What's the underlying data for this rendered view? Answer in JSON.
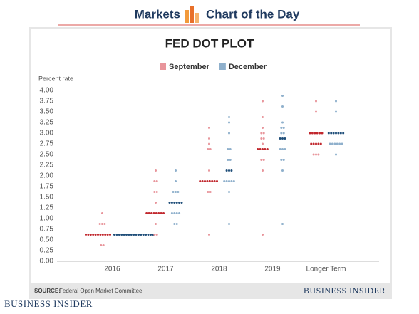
{
  "header": {
    "left": "Markets",
    "right": "Chart of the Day"
  },
  "chart_data": {
    "type": "dot",
    "title": "FED DOT PLOT",
    "y_label": "Percent rate",
    "categories": [
      "2016",
      "2017",
      "2018",
      "2019",
      "Longer Term"
    ],
    "ylim": [
      0,
      4
    ],
    "yticks": [
      {
        "value": 0,
        "label": "0.00"
      },
      0.25,
      {
        "value": 0.5,
        "label": "0.50"
      },
      0.75,
      {
        "value": 1,
        "label": "1.00"
      },
      1.25,
      {
        "value": 1.5,
        "label": "1.50"
      },
      1.75,
      {
        "value": 2,
        "label": "2.00"
      },
      2.25,
      {
        "value": 2.5,
        "label": "2.50"
      },
      2.75,
      {
        "value": 3,
        "label": "3.00"
      },
      3.25,
      {
        "value": 3.5,
        "label": "3.50"
      },
      3.75,
      {
        "value": 4,
        "label": "4.00"
      }
    ],
    "grid": false,
    "legend": "top",
    "series": [
      {
        "name": "September",
        "color": "#e8959b",
        "highlight_color": "#c1272d",
        "highlight": [
          [
            0.625
          ],
          [
            1.125
          ],
          [
            1.875
          ],
          [
            2.625
          ],
          [
            2.75,
            3.0
          ]
        ],
        "values": [
          {
            "rates": [
              0.375,
              0.625,
              0.875,
              1.125
            ],
            "counts": [
              2,
              11,
              3,
              1
            ]
          },
          {
            "rates": [
              0.625,
              0.875,
              1.125,
              1.375,
              1.625,
              1.875,
              2.125
            ],
            "counts": [
              2,
              1,
              8,
              1,
              2,
              2,
              1
            ]
          },
          {
            "rates": [
              0.625,
              1.625,
              1.875,
              2.125,
              2.625,
              2.75,
              2.875,
              3.125
            ],
            "counts": [
              1,
              2,
              8,
              1,
              2,
              1,
              1,
              1
            ]
          },
          {
            "rates": [
              0.625,
              2.125,
              2.375,
              2.625,
              2.75,
              2.875,
              3.0,
              3.125,
              3.375,
              3.75
            ],
            "counts": [
              1,
              1,
              2,
              5,
              1,
              2,
              2,
              1,
              1,
              1
            ]
          },
          {
            "rates": [
              2.5,
              2.75,
              3.0,
              3.5,
              3.75
            ],
            "counts": [
              3,
              5,
              6,
              1,
              1
            ]
          }
        ]
      },
      {
        "name": "December",
        "color": "#8fb0cc",
        "highlight_color": "#1f4e79",
        "highlight": [
          [
            0.625
          ],
          [
            1.375
          ],
          [
            2.125
          ],
          [
            2.875
          ],
          [
            3.0
          ]
        ],
        "values": [
          {
            "rates": [
              0.625
            ],
            "counts": [
              17
            ]
          },
          {
            "rates": [
              0.875,
              1.125,
              1.375,
              1.625,
              1.875,
              2.125
            ],
            "counts": [
              2,
              4,
              6,
              3,
              1,
              1
            ]
          },
          {
            "rates": [
              0.875,
              1.625,
              1.875,
              2.125,
              2.375,
              2.625,
              3.0,
              3.25,
              3.375
            ],
            "counts": [
              1,
              1,
              5,
              3,
              2,
              2,
              1,
              1,
              1
            ]
          },
          {
            "rates": [
              0.875,
              2.125,
              2.375,
              2.625,
              2.875,
              3.0,
              3.125,
              3.25,
              3.625,
              3.875
            ],
            "counts": [
              1,
              1,
              2,
              3,
              3,
              2,
              2,
              1,
              1,
              1
            ]
          },
          {
            "rates": [
              2.5,
              2.75,
              3.0,
              3.5,
              3.75
            ],
            "counts": [
              1,
              6,
              7,
              1,
              1
            ]
          }
        ]
      }
    ]
  },
  "footer": {
    "source_label": "SOURCE:",
    "source": "Federal Open Market Committee",
    "brand": "Business Insider",
    "logo": "Business Insider"
  }
}
